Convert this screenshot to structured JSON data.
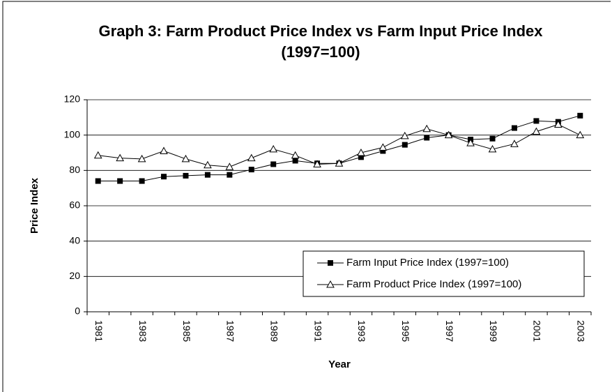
{
  "chart_data": {
    "type": "line",
    "title": "Graph 3: Farm Product Price Index vs Farm Input Price Index (1997=100)",
    "x_label": "Year",
    "y_label": "Price Index",
    "categories": [
      "1981",
      null,
      "1983",
      null,
      "1985",
      null,
      "1987",
      null,
      "1989",
      null,
      "1991",
      null,
      "1993",
      null,
      "1995",
      null,
      "1997",
      null,
      "1999",
      null,
      "2001",
      null,
      "2003"
    ],
    "series": [
      {
        "name": "Farm Input Price Index (1997=100)",
        "color": "#000000",
        "marker": "square",
        "values": [
          74,
          74,
          74,
          76.5,
          77,
          77.5,
          77.5,
          80.5,
          83.5,
          85.5,
          84,
          84,
          87.5,
          91,
          94.5,
          98.5,
          100,
          97.5,
          98,
          104,
          108,
          107.5,
          111
        ]
      },
      {
        "name": "Farm Product Price Index (1997=100)",
        "color": "#000000",
        "marker": "triangle",
        "values": [
          88.5,
          87,
          86.5,
          91,
          86.5,
          83,
          82,
          87,
          92,
          88.5,
          83.5,
          84,
          90,
          93,
          99.5,
          103.5,
          100,
          95.5,
          92,
          95,
          102,
          106,
          100
        ]
      }
    ],
    "ylim": [
      0,
      120
    ],
    "yticks": [
      0,
      20,
      40,
      60,
      80,
      100,
      120
    ],
    "grid": true,
    "legend": "lower-right"
  }
}
